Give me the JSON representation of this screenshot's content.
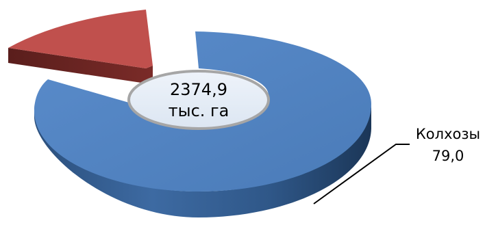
{
  "chart_data": {
    "type": "pie",
    "style": "3d-doughnut-exploded",
    "center_label": [
      "2374,9",
      "тыс. га"
    ],
    "slices": [
      {
        "name": "Колхозы",
        "value": 79.0,
        "value_label": "79,0",
        "color": "#4F81BD",
        "labeled": true
      },
      {
        "name": "",
        "value": 21.0,
        "value_label": "",
        "color": "#C0504D",
        "labeled": false,
        "exploded": true
      }
    ]
  }
}
